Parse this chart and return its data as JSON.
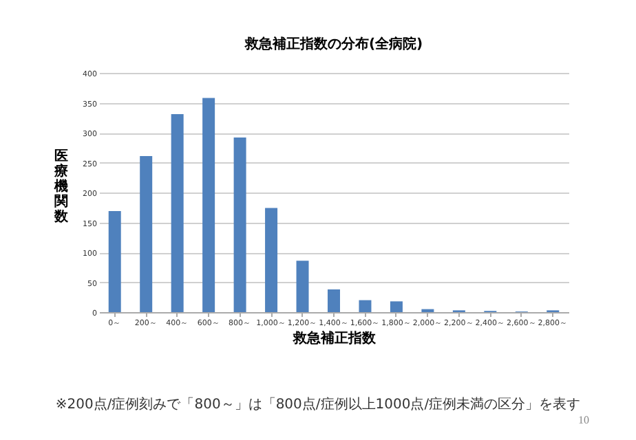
{
  "chart_data": {
    "type": "bar",
    "title": "救急補正指数の分布(全病院)",
    "xlabel": "救急補正指数",
    "ylabel": "医療機関数",
    "categories": [
      "0～",
      "200～",
      "400～",
      "600～",
      "800～",
      "1,000～",
      "1,200～",
      "1,400～",
      "1,600～",
      "1,800～",
      "2,000～",
      "2,200～",
      "2,400～",
      "2,600～",
      "2,800～"
    ],
    "values": [
      169,
      261,
      331,
      358,
      292,
      174,
      86,
      38,
      20,
      18,
      5,
      3,
      2,
      1,
      3
    ],
    "color": "#4f81bd",
    "ylim": [
      0,
      400
    ],
    "yticks": [
      0,
      50,
      100,
      150,
      200,
      250,
      300,
      350,
      400
    ],
    "grid": "y",
    "annotations": [
      "※200点/症例刻みで「800～」は「800点/症例以上1000点/症例未満の区分」を表す",
      "10"
    ]
  }
}
